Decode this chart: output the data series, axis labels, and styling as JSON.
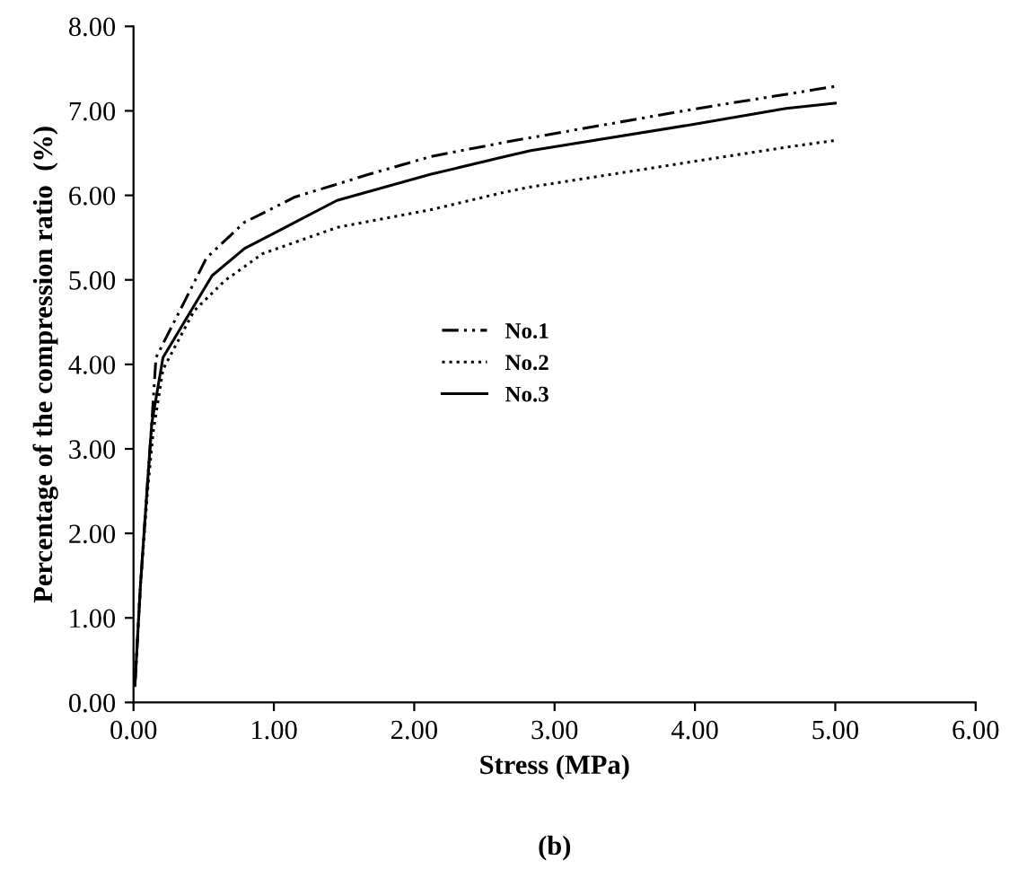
{
  "chart_data": {
    "type": "line",
    "xlabel": "Stress (MPa)",
    "ylabel": "Percentage of the compression ratio  (%)",
    "annotations": [
      "(b)"
    ],
    "xlim": [
      0,
      6
    ],
    "ylim": [
      0,
      8
    ],
    "xticks": [
      {
        "value": 0,
        "label": "0.00"
      },
      {
        "value": 1,
        "label": "1.00"
      },
      {
        "value": 2,
        "label": "2.00"
      },
      {
        "value": 3,
        "label": "3.00"
      },
      {
        "value": 4,
        "label": "4.00"
      },
      {
        "value": 5,
        "label": "5.00"
      },
      {
        "value": 6,
        "label": "6.00"
      }
    ],
    "yticks": [
      {
        "value": 0,
        "label": "0.00"
      },
      {
        "value": 1,
        "label": "1.00"
      },
      {
        "value": 2,
        "label": "2.00"
      },
      {
        "value": 3,
        "label": "3.00"
      },
      {
        "value": 4,
        "label": "4.00"
      },
      {
        "value": 5,
        "label": "5.00"
      },
      {
        "value": 6,
        "label": "6.00"
      },
      {
        "value": 7,
        "label": "7.00"
      },
      {
        "value": 8,
        "label": "8.00"
      }
    ],
    "grid": false,
    "legend": "center",
    "marker": "none",
    "series": [
      {
        "name": "No.1",
        "color": "#000000",
        "line_style": "dashdot",
        "x": [
          0.01,
          0.05,
          0.1,
          0.13,
          0.16,
          0.35,
          0.52,
          0.79,
          1.15,
          1.68,
          2.12,
          2.65,
          3.99,
          5.0
        ],
        "values": [
          0.2,
          1.4,
          2.6,
          3.3,
          4.08,
          4.7,
          5.26,
          5.68,
          5.98,
          6.25,
          6.46,
          6.63,
          7.02,
          7.29
        ]
      },
      {
        "name": "No.2",
        "color": "#000000",
        "line_style": "dotted",
        "x": [
          0.01,
          0.05,
          0.1,
          0.14,
          0.21,
          0.43,
          0.65,
          0.92,
          1.45,
          2.12,
          2.65,
          2.83,
          3.99,
          4.65,
          5.0
        ],
        "values": [
          0.2,
          1.4,
          2.5,
          3.2,
          3.94,
          4.63,
          4.99,
          5.31,
          5.62,
          5.83,
          6.04,
          6.1,
          6.4,
          6.57,
          6.65
        ]
      },
      {
        "name": "No.3",
        "color": "#000000",
        "line_style": "solid",
        "x": [
          0.01,
          0.05,
          0.1,
          0.13,
          0.21,
          0.56,
          0.79,
          1.15,
          1.45,
          2.12,
          2.65,
          2.83,
          3.99,
          4.65,
          5.0
        ],
        "values": [
          0.2,
          1.4,
          2.6,
          3.3,
          4.08,
          5.05,
          5.37,
          5.68,
          5.94,
          6.25,
          6.46,
          6.53,
          6.84,
          7.03,
          7.09
        ]
      }
    ]
  }
}
